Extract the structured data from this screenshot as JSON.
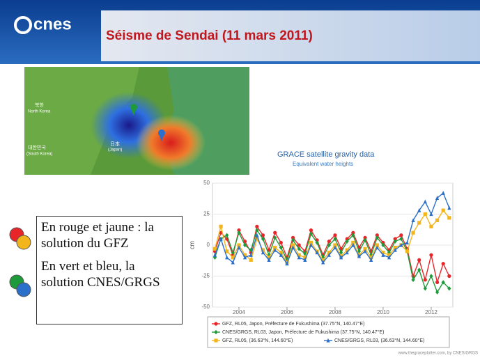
{
  "slide": {
    "logo": "cnes",
    "title": "Séisme de Sendai (11 mars 2011)",
    "map_labels": [
      "북한",
      "North Korea",
      "대한민국",
      "(South Korea)",
      "日本",
      "(Japan)"
    ],
    "note": [
      "En rouge et jaune : la solution du GFZ",
      "En vert et bleu, la solution CNES/GRGS"
    ]
  },
  "chart_data": {
    "type": "line",
    "title": "GRACE satellite gravity data",
    "subtitle": "Equivalent water heights",
    "y_label": "cm",
    "credit": "www.thegraceplotter.com, by CNES/GRGS",
    "x": [
      2003,
      2003.25,
      2003.5,
      2003.75,
      2004,
      2004.25,
      2004.5,
      2004.75,
      2005,
      2005.25,
      2005.5,
      2005.75,
      2006,
      2006.25,
      2006.5,
      2006.75,
      2007,
      2007.25,
      2007.5,
      2007.75,
      2008,
      2008.25,
      2008.5,
      2008.75,
      2009,
      2009.25,
      2009.5,
      2009.75,
      2010,
      2010.25,
      2010.5,
      2010.75,
      2011,
      2011.25,
      2011.5,
      2011.75,
      2012,
      2012.25,
      2012.5,
      2012.75
    ],
    "xlim": [
      2002.9,
      2012.9
    ],
    "xticks": [
      2004,
      2006,
      2008,
      2010,
      2012
    ],
    "ylim": [
      -50,
      50
    ],
    "yticks": [
      -50,
      -25,
      0,
      25,
      50
    ],
    "series": [
      {
        "name": "GFZ, RL05, Japon, Préfecture de Fukushima (37.75°N, 140.47°E)",
        "color": "#e8262a",
        "marker": "circle",
        "values": [
          -5,
          10,
          5,
          -8,
          12,
          3,
          -6,
          15,
          8,
          -4,
          10,
          2,
          -10,
          6,
          0,
          -5,
          12,
          4,
          -8,
          3,
          8,
          -3,
          5,
          10,
          -2,
          6,
          -5,
          8,
          2,
          -4,
          5,
          8,
          -3,
          -25,
          -12,
          -28,
          -8,
          -30,
          -15,
          -25
        ]
      },
      {
        "name": "CNES/GRGS, RL03, Japon, Préfecture de Fukushima (37.75°N, 140.47°E)",
        "color": "#1e9a3a",
        "marker": "diamond",
        "values": [
          -10,
          5,
          8,
          -6,
          10,
          0,
          -4,
          12,
          5,
          -8,
          6,
          -2,
          -12,
          4,
          -3,
          -7,
          9,
          2,
          -10,
          0,
          5,
          -6,
          3,
          8,
          -5,
          4,
          -8,
          6,
          0,
          -6,
          3,
          5,
          -5,
          -28,
          -20,
          -35,
          -25,
          -38,
          -30,
          -35
        ]
      },
      {
        "name": "GFZ, RL05, (36.63°N, 144.60°E)",
        "color": "#f2b51c",
        "marker": "square",
        "values": [
          -3,
          15,
          -5,
          -10,
          0,
          -8,
          -12,
          5,
          -4,
          -10,
          -2,
          -6,
          -14,
          0,
          -8,
          -10,
          2,
          -5,
          -12,
          -6,
          0,
          -9,
          -4,
          2,
          -8,
          -3,
          -10,
          0,
          -6,
          -8,
          -2,
          0,
          -5,
          10,
          18,
          25,
          15,
          20,
          28,
          22
        ]
      },
      {
        "name": "CNES/GRGS, RL03, (36.63°N, 144.60°E)",
        "color": "#2a6fc9",
        "marker": "triangle",
        "values": [
          -8,
          5,
          -10,
          -14,
          -2,
          -10,
          -8,
          8,
          -6,
          -12,
          -4,
          -8,
          -15,
          -2,
          -10,
          -12,
          0,
          -6,
          -14,
          -8,
          -2,
          -10,
          -6,
          0,
          -9,
          -5,
          -12,
          -2,
          -8,
          -10,
          -4,
          0,
          2,
          20,
          28,
          35,
          25,
          38,
          42,
          30
        ]
      }
    ]
  }
}
